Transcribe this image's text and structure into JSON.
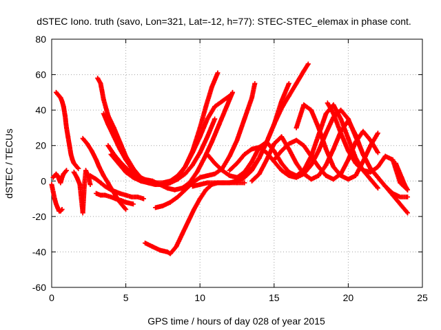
{
  "chart_data": {
    "type": "scatter",
    "title": "dSTEC Iono. truth (savo, Lon=321, Lat=-12, h=77): STEC-STEC_elemax in phase cont.",
    "xlabel": "GPS time / hours of day 028 of year 2015",
    "ylabel": "dSTEC  / TECUs",
    "xlim": [
      0,
      25
    ],
    "ylim": [
      -60,
      80
    ],
    "xticks": [
      "0",
      "5",
      "10",
      "15",
      "20",
      "25"
    ],
    "yticks": [
      "-60",
      "-40",
      "-20",
      "0",
      "20",
      "40",
      "60",
      "80"
    ],
    "grid": true,
    "marker": "+",
    "color": "#ff0000",
    "series": [
      {
        "x": [
          0.0,
          0.1,
          0.2,
          0.3,
          0.4,
          0.5,
          0.6,
          0.7
        ],
        "y": [
          -2,
          -6,
          -10,
          -13,
          -15,
          -17,
          -17,
          -16
        ]
      },
      {
        "x": [
          0.3,
          0.4,
          0.5,
          0.6,
          0.7,
          0.8,
          0.9,
          1.0,
          1.1,
          1.2,
          1.3,
          1.4,
          1.5,
          1.6,
          1.7,
          1.8
        ],
        "y": [
          50,
          49,
          48,
          47,
          45,
          42,
          37,
          30,
          25,
          20,
          15,
          12,
          10,
          9,
          8,
          7
        ]
      },
      {
        "x": [
          0.1,
          0.2,
          0.3,
          0.4,
          0.5,
          0.6,
          0.7,
          0.8,
          0.9,
          1.0
        ],
        "y": [
          2,
          3,
          4,
          3,
          1,
          -1,
          2,
          4,
          5,
          6
        ]
      },
      {
        "x": [
          1.5,
          1.7,
          1.9,
          2.1,
          2.2,
          2.3,
          2.5,
          2.6
        ],
        "y": [
          5,
          2,
          -2,
          -18,
          -3,
          6,
          2,
          -2
        ]
      },
      {
        "x": [
          2.1,
          2.4,
          2.7,
          3.0,
          3.2,
          3.5,
          3.8,
          4.0,
          4.3,
          4.5,
          4.8,
          5.0
        ],
        "y": [
          24,
          21,
          17,
          12,
          8,
          3,
          -1,
          -4,
          -8,
          -11,
          -14,
          -16
        ]
      },
      {
        "x": [
          2.6,
          3.0,
          3.3,
          3.6,
          4.0,
          4.3,
          4.6,
          5.0,
          5.4,
          5.8,
          6.2
        ],
        "y": [
          3,
          1,
          -1,
          -3,
          -5,
          -6,
          -7,
          -8,
          -9,
          -9,
          -10
        ]
      },
      {
        "x": [
          3.0,
          3.3,
          3.6,
          4.0,
          4.3,
          4.7,
          5.0,
          5.5
        ],
        "y": [
          -7,
          -8,
          -8,
          -9,
          -10,
          -11,
          -12,
          -13
        ]
      },
      {
        "x": [
          3.1,
          3.3,
          3.5,
          3.8,
          4.2,
          4.6,
          5.0,
          5.5,
          6.0,
          6.5,
          7.0,
          7.5,
          8.0,
          8.5,
          9.0,
          9.5,
          10.0,
          10.4,
          10.8,
          11.2
        ],
        "y": [
          58,
          55,
          46,
          37,
          30,
          22,
          14,
          7,
          2,
          -1,
          -2,
          -2,
          -1,
          2,
          8,
          17,
          30,
          42,
          53,
          61
        ]
      },
      {
        "x": [
          3.5,
          3.8,
          4.2,
          4.6,
          5.0,
          5.5,
          6.0,
          6.5,
          7.0,
          7.5,
          8.0,
          8.5,
          9.0,
          9.5,
          10.0,
          10.5,
          11.0,
          11.5,
          12.0
        ],
        "y": [
          38,
          32,
          25,
          18,
          12,
          6,
          2,
          0,
          -1,
          -1,
          0,
          3,
          8,
          16,
          25,
          35,
          42,
          45,
          48
        ]
      },
      {
        "x": [
          3.8,
          4.2,
          4.7,
          5.2,
          5.7,
          6.2,
          6.8,
          7.3,
          7.8,
          8.3,
          8.8,
          9.3,
          9.8,
          10.3,
          10.8,
          11.3,
          11.8,
          12.2
        ],
        "y": [
          20,
          15,
          10,
          6,
          3,
          1,
          0,
          -2,
          -4,
          -5,
          -4,
          -1,
          5,
          13,
          22,
          32,
          42,
          50
        ]
      },
      {
        "x": [
          4.0,
          4.5,
          5.0,
          5.5,
          6.0,
          6.5,
          7.0,
          7.5,
          8.0,
          8.5,
          9.0,
          9.5,
          10.0,
          10.5,
          11.0
        ],
        "y": [
          15,
          10,
          5,
          2,
          0,
          -1,
          -2,
          -2,
          -1,
          1,
          4,
          9,
          16,
          25,
          35
        ]
      },
      {
        "x": [
          7.0,
          7.5,
          8.0,
          8.5,
          9.0,
          9.5,
          10.0,
          10.5,
          11.0,
          11.5,
          12.0,
          12.5,
          13.0,
          13.5,
          13.7
        ],
        "y": [
          -15,
          -14,
          -12,
          -9,
          -5,
          -1,
          2,
          3,
          4,
          7,
          14,
          23,
          35,
          47,
          55
        ]
      },
      {
        "x": [
          6.3,
          6.8,
          7.3,
          7.8,
          8.0,
          8.4,
          8.8,
          9.2,
          9.6,
          10.0,
          10.4,
          10.8,
          11.2,
          11.6,
          12.0,
          12.5,
          13.0
        ],
        "y": [
          -35,
          -37,
          -39,
          -40,
          -41,
          -37,
          -30,
          -23,
          -16,
          -10,
          -5,
          -2,
          -1,
          -1,
          -1,
          -1,
          -1
        ]
      },
      {
        "x": [
          9.5,
          10.0,
          10.5,
          11.0,
          11.5,
          12.0,
          12.5,
          13.0,
          13.5,
          14.0,
          14.5,
          15.0,
          15.5,
          16.0
        ],
        "y": [
          -3,
          -2,
          -1,
          -1,
          -1,
          -1,
          0,
          2,
          6,
          13,
          22,
          32,
          45,
          55
        ]
      },
      {
        "x": [
          10.5,
          11.0,
          11.5,
          12.0,
          12.5,
          13.0,
          13.5,
          14.0,
          14.5,
          15.0,
          15.5,
          16.0,
          16.5,
          17.0,
          17.3
        ],
        "y": [
          15,
          10,
          6,
          3,
          2,
          3,
          7,
          13,
          22,
          32,
          41,
          48,
          55,
          62,
          66
        ]
      },
      {
        "x": [
          12.0,
          12.5,
          13.0,
          13.5,
          14.0,
          14.5,
          15.0,
          15.5,
          16.0,
          16.5,
          17.0,
          17.5,
          18.0,
          18.5,
          19.0,
          19.5,
          20.0,
          20.5,
          21.0,
          21.5,
          22.0,
          22.5,
          23.0,
          23.3,
          23.6,
          24.0
        ],
        "y": [
          6,
          10,
          15,
          18,
          19,
          16,
          11,
          6,
          3,
          2,
          4,
          9,
          17,
          27,
          36,
          40,
          35,
          25,
          15,
          7,
          2,
          -3,
          -8,
          -11,
          -14,
          -18
        ]
      },
      {
        "x": [
          12.5,
          13.0,
          13.5,
          14.0,
          14.5,
          15.0,
          15.5,
          16.0,
          16.5,
          17.0,
          17.5,
          18.0,
          18.5,
          19.0,
          19.5,
          20.0,
          20.5,
          21.0,
          21.5,
          22.0
        ],
        "y": [
          2,
          5,
          11,
          19,
          22,
          17,
          10,
          5,
          3,
          6,
          14,
          26,
          38,
          43,
          35,
          24,
          13,
          6,
          1,
          -4
        ]
      },
      {
        "x": [
          13.5,
          14.0,
          14.5,
          15.0,
          15.5,
          16.0,
          16.5,
          17.0,
          17.5,
          18.0,
          18.5,
          19.0,
          19.5,
          20.0,
          20.5,
          21.0,
          21.5,
          22.0,
          22.5,
          23.0,
          23.5,
          24.0
        ],
        "y": [
          0,
          4,
          12,
          21,
          25,
          18,
          10,
          4,
          1,
          3,
          9,
          18,
          28,
          34,
          26,
          15,
          7,
          2,
          -3,
          -7,
          -9,
          -9
        ]
      },
      {
        "x": [
          15.0,
          15.5,
          16.0,
          16.5,
          17.0,
          17.5,
          18.0,
          18.5,
          19.0,
          19.5,
          20.0,
          20.5,
          21.0,
          21.5,
          22.0
        ],
        "y": [
          12,
          17,
          21,
          23,
          20,
          14,
          8,
          3,
          1,
          4,
          12,
          22,
          28,
          23,
          16
        ]
      },
      {
        "x": [
          16.5,
          17.0,
          17.5,
          18.0,
          18.5,
          19.0,
          19.5,
          20.0,
          20.5,
          21.0,
          21.5,
          22.0
        ],
        "y": [
          30,
          43,
          40,
          30,
          18,
          8,
          3,
          1,
          3,
          11,
          20,
          27
        ]
      },
      {
        "x": [
          18.6,
          19.0,
          19.5,
          20.0,
          20.5,
          21.0,
          21.5,
          22.0,
          22.5,
          23.0,
          23.5,
          24.0
        ],
        "y": [
          44,
          38,
          27,
          17,
          10,
          6,
          5,
          8,
          14,
          12,
          -1,
          -5
        ]
      },
      {
        "x": [
          23.2,
          23.4,
          23.6,
          23.8,
          24.0
        ],
        "y": [
          10,
          6,
          2,
          -2,
          -5
        ]
      }
    ]
  }
}
